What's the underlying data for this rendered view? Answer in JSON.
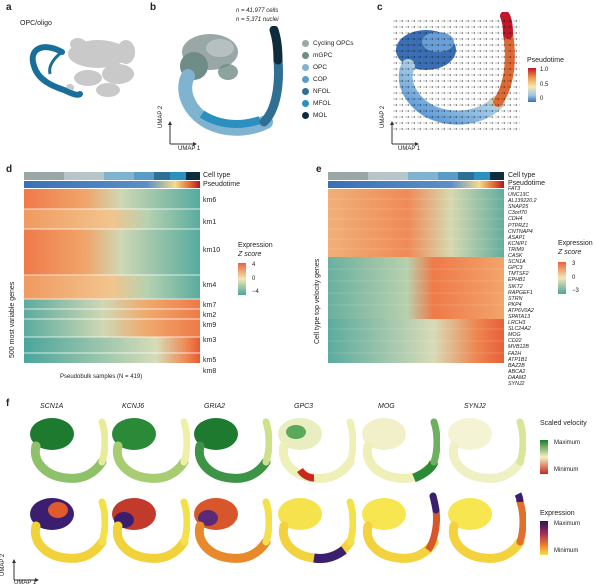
{
  "panels": {
    "a": {
      "label": "a",
      "annotation": "OPC/oligo"
    },
    "b": {
      "label": "b",
      "cells_text": "n = 41,977 cells",
      "nuclei_text": "n = 5,371 nuclei",
      "axis_x": "UMAP 1",
      "axis_y": "UMAP 2",
      "legend": [
        {
          "name": "Cycling OPCs",
          "color": "#9aa7a7"
        },
        {
          "name": "mGPC",
          "color": "#6f8c86"
        },
        {
          "name": "OPC",
          "color": "#7fb3d0"
        },
        {
          "name": "COP",
          "color": "#5a9cc7"
        },
        {
          "name": "NFOL",
          "color": "#2f6f94"
        },
        {
          "name": "MFOL",
          "color": "#2b8fc0"
        },
        {
          "name": "MOL",
          "color": "#0f2c3d"
        }
      ]
    },
    "c": {
      "label": "c",
      "legend_title": "Pseudotime",
      "ticks": [
        "1.0",
        "0.5",
        "0"
      ],
      "axis_x": "UMAP 1",
      "axis_y": "UMAP 2"
    },
    "d": {
      "label": "d",
      "row1": "Cell type",
      "row2": "Pseudotime",
      "ylabel": "500 most variable genes",
      "xlabel": "Pseudobulk samples (N = 419)",
      "clusters": [
        "km6",
        "km1",
        "km10",
        "km4",
        "km7",
        "km2",
        "km9",
        "km3",
        "km5",
        "km8"
      ],
      "legend_title": "Expression",
      "legend_sub": "Z score",
      "ticks": [
        "4",
        "0",
        "−4"
      ]
    },
    "e": {
      "label": "e",
      "row1": "Cell type",
      "row2": "Pseudotime",
      "ylabel": "Cell type top velocity genes",
      "genes": [
        "FAT3",
        "UNC13C",
        "AL139220.2",
        "SNAP25",
        "C3orf70",
        "CDH4",
        "PTPRZ1",
        "CNTNAP4",
        "ASAP1",
        "KCNIP1",
        "TRIM9",
        "CASK",
        "SCN1A",
        "GPC3",
        "TMTSF2",
        "EPHB1",
        "SIKT2",
        "RAPGEF1",
        "STRN",
        "PKP4",
        "ATP6V0A2",
        "SPATA13",
        "LRCH3",
        "SLC24A2",
        "MOG",
        "CD22",
        "MVB12B",
        "FA2H",
        "ATP1B1",
        "BAZ2B",
        "ABCA2",
        "DAAM2",
        "SYNJ2"
      ],
      "legend_title": "Expression",
      "legend_sub": "Z score",
      "ticks": [
        "3",
        "0",
        "−3"
      ]
    },
    "f": {
      "label": "f",
      "genes": [
        "SCN1A",
        "KCNJ6",
        "GRIA2",
        "GPC3",
        "MOG",
        "SYNJ2"
      ],
      "top_legend_title": "Scaled velocity",
      "top_max": "Maximum",
      "top_min": "Minimum",
      "bottom_legend_title": "Expression",
      "bottom_max": "Maximum",
      "bottom_min": "Minimum",
      "axis_x": "UMAP 1",
      "axis_y": "UMAP 2"
    }
  },
  "colors": {
    "heat_high": "#e8623a",
    "heat_mid": "#f3e7b4",
    "heat_low": "#4aa69c",
    "green_max": "#1e7a2e",
    "red_min": "#c8281e",
    "pseudo_high": "#c0172b",
    "pseudo_low": "#3a6fb5"
  }
}
